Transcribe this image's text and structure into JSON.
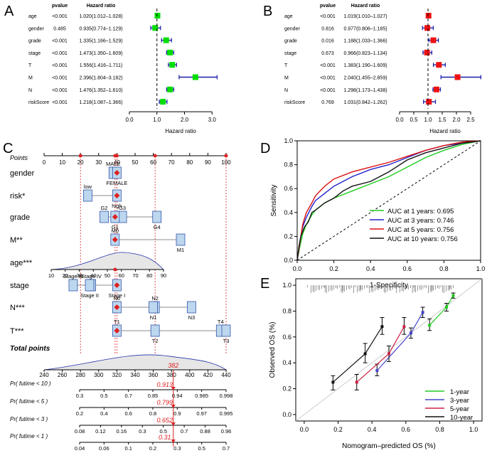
{
  "chart_data": [
    {
      "type": "forest",
      "panel_label": "A",
      "pvalue_header": "pvalue",
      "hr_header": "Hazard ratio",
      "xlabel": "Hazard ratio",
      "xlim": [
        0,
        3.2
      ],
      "ticks": [
        "0.0",
        "1.0",
        "2.0",
        "3.0"
      ],
      "tick_values": [
        0,
        1,
        2,
        3
      ],
      "ref_line": 1,
      "point_color": "#00dd00",
      "rows": [
        {
          "name": "age",
          "pvalue": "<0.001",
          "hr_text": "1.020(1.012–1.028)",
          "hr": 1.02,
          "lo": 1.012,
          "hi": 1.028
        },
        {
          "name": "gender",
          "pvalue": "0.485",
          "hr_text": "0.935(0.774–1.129)",
          "hr": 0.935,
          "lo": 0.774,
          "hi": 1.129
        },
        {
          "name": "grade",
          "pvalue": "<0.001",
          "hr_text": "1.335(1.166–1.529)",
          "hr": 1.335,
          "lo": 1.166,
          "hi": 1.529
        },
        {
          "name": "stage",
          "pvalue": "<0.001",
          "hr_text": "1.473(1.350–1.609)",
          "hr": 1.473,
          "lo": 1.35,
          "hi": 1.609
        },
        {
          "name": "T",
          "pvalue": "<0.001",
          "hr_text": "1.556(1.416–1.711)",
          "hr": 1.556,
          "lo": 1.416,
          "hi": 1.711
        },
        {
          "name": "M",
          "pvalue": "<0.001",
          "hr_text": "2.396(1.804–3.182)",
          "hr": 2.396,
          "lo": 1.804,
          "hi": 3.182
        },
        {
          "name": "N",
          "pvalue": "<0.001",
          "hr_text": "1.476(1.352–1.610)",
          "hr": 1.476,
          "lo": 1.352,
          "hi": 1.61
        },
        {
          "name": "riskScore",
          "pvalue": "<0.001",
          "hr_text": "1.218(1.087–1.366)",
          "hr": 1.218,
          "lo": 1.087,
          "hi": 1.366
        }
      ]
    },
    {
      "type": "forest",
      "panel_label": "B",
      "pvalue_header": "pvalue",
      "hr_header": "Hazard ratio",
      "xlabel": "Hazard ratio",
      "xlim": [
        0,
        2.7
      ],
      "ticks": [
        "0.0",
        "0.5",
        "1.0",
        "1.5",
        "2.0",
        "2.5"
      ],
      "tick_values": [
        0,
        0.5,
        1,
        1.5,
        2,
        2.5
      ],
      "ref_line": 1,
      "point_color": "#ee1111",
      "rows": [
        {
          "name": "age",
          "pvalue": "<0.001",
          "hr_text": "1.019(1.010–1.027)",
          "hr": 1.019,
          "lo": 1.01,
          "hi": 1.027
        },
        {
          "name": "gender",
          "pvalue": "0.816",
          "hr_text": "0.977(0.806–1.185)",
          "hr": 0.977,
          "lo": 0.806,
          "hi": 1.185
        },
        {
          "name": "grade",
          "pvalue": "0.016",
          "hr_text": "1.188(1.033–1.366)",
          "hr": 1.188,
          "lo": 1.033,
          "hi": 1.366
        },
        {
          "name": "stage",
          "pvalue": "0.673",
          "hr_text": "0.966(0.823–1.134)",
          "hr": 0.966,
          "lo": 0.823,
          "hi": 1.134
        },
        {
          "name": "T",
          "pvalue": "<0.001",
          "hr_text": "1.383(1.190–1.609)",
          "hr": 1.383,
          "lo": 1.19,
          "hi": 1.609
        },
        {
          "name": "M",
          "pvalue": "<0.001",
          "hr_text": "2.040(1.455–2.859)",
          "hr": 2.04,
          "lo": 1.455,
          "hi": 2.859
        },
        {
          "name": "N",
          "pvalue": "<0.001",
          "hr_text": "1.298(1.173–1.438)",
          "hr": 1.298,
          "lo": 1.173,
          "hi": 1.438
        },
        {
          "name": "riskScore",
          "pvalue": "0.769",
          "hr_text": "1.031(0.842–1.262)",
          "hr": 1.031,
          "lo": 0.842,
          "hi": 1.262
        }
      ]
    },
    {
      "type": "nomogram",
      "panel_label": "C",
      "points_label": "Points",
      "points_ticks": [
        "0",
        "10",
        "20",
        "30",
        "40",
        "50",
        "60",
        "70",
        "80",
        "90",
        "100"
      ],
      "points_ref_lines": [
        20,
        39,
        40,
        61,
        100
      ],
      "rows": [
        {
          "name": "gender",
          "labels": [
            {
              "text": "MALE",
              "pos": 38,
              "where": "above"
            },
            {
              "text": "FEMALE",
              "pos": 40,
              "where": "below"
            }
          ]
        },
        {
          "name": "risk*",
          "labels": [
            {
              "text": "low",
              "pos": 24,
              "where": "above"
            },
            {
              "text": "high",
              "pos": 40,
              "where": "below"
            }
          ]
        },
        {
          "name": "grade",
          "labels": [
            {
              "text": "G2",
              "pos": 33,
              "where": "above"
            },
            {
              "text": "G3",
              "pos": 43,
              "where": "above"
            },
            {
              "text": "G1",
              "pos": 39,
              "where": "below"
            },
            {
              "text": "G4",
              "pos": 62,
              "where": "below"
            }
          ]
        },
        {
          "name": "M**",
          "labels": [
            {
              "text": "M0",
              "pos": 39,
              "where": "above"
            },
            {
              "text": "M1",
              "pos": 75,
              "where": "below"
            }
          ]
        },
        {
          "name": "age***",
          "axis_ticks": [
            "10",
            "20",
            "30",
            "40",
            "50",
            "60",
            "70",
            "80",
            "90"
          ]
        },
        {
          "name": "stage",
          "labels": [
            {
              "text": "Stage III",
              "pos": 16,
              "where": "above"
            },
            {
              "text": "Stage IV",
              "pos": 26,
              "where": "above"
            },
            {
              "text": "Stage II",
              "pos": 25,
              "where": "below"
            },
            {
              "text": "Stage I",
              "pos": 40,
              "where": "below"
            }
          ]
        },
        {
          "name": "N***",
          "labels": [
            {
              "text": "N0",
              "pos": 40,
              "where": "above"
            },
            {
              "text": "N2",
              "pos": 61,
              "where": "above"
            },
            {
              "text": "N1",
              "pos": 60,
              "where": "below"
            },
            {
              "text": "N3",
              "pos": 81,
              "where": "below"
            }
          ]
        },
        {
          "name": "T***",
          "labels": [
            {
              "text": "T1",
              "pos": 40,
              "where": "above"
            },
            {
              "text": "T4",
              "pos": 97,
              "where": "above"
            },
            {
              "text": "T2",
              "pos": 61,
              "where": "below"
            },
            {
              "text": "T3",
              "pos": 100,
              "where": "below"
            }
          ]
        }
      ],
      "total_points_label": "Total points",
      "total_points_ticks": [
        "240",
        "260",
        "280",
        "300",
        "320",
        "340",
        "360",
        "380",
        "400",
        "420",
        "440"
      ],
      "total_points_value": "382",
      "prob_rows": [
        {
          "name": "Pr( futime < 10 )",
          "value": "0.913",
          "ticks": [
            "0.3",
            "0.5",
            "0.7",
            "0.85",
            "0.94",
            "0.985",
            "0.998"
          ]
        },
        {
          "name": "Pr( futime < 5 )",
          "value": "0.799",
          "ticks": [
            "0.2",
            "0.4",
            "0.6",
            "0.8",
            "0.9",
            "0.97",
            "0.995"
          ]
        },
        {
          "name": "Pr( futime < 3 )",
          "value": "0.652",
          "ticks": [
            "0.08",
            "0.12",
            "0.16",
            "0.3",
            "0.5",
            "0.7",
            "0.88",
            "0.96"
          ]
        },
        {
          "name": "Pr( futime < 1 )",
          "value": "0.31",
          "ticks": [
            "0.04",
            "0.06",
            "0.1",
            "0.2",
            "0.3",
            "0.5",
            "0.7"
          ]
        }
      ]
    },
    {
      "type": "line",
      "panel_label": "D",
      "xlabel": "1-Specificity",
      "ylabel": "Sensitivity",
      "xlim": [
        0,
        1
      ],
      "ylim": [
        0,
        1
      ],
      "ticks": [
        "0.0",
        "0.2",
        "0.4",
        "0.6",
        "0.8",
        "1.0"
      ],
      "tick_values": [
        0,
        0.2,
        0.4,
        0.6,
        0.8,
        1.0
      ],
      "series": [
        {
          "name": "AUC at 1 years: 0.695",
          "color": "#22cc22",
          "x": [
            0,
            0.01,
            0.02,
            0.03,
            0.05,
            0.08,
            0.1,
            0.15,
            0.2,
            0.3,
            0.4,
            0.5,
            0.6,
            0.7,
            0.8,
            0.9,
            1.0
          ],
          "y": [
            0,
            0.08,
            0.15,
            0.22,
            0.3,
            0.38,
            0.42,
            0.48,
            0.52,
            0.58,
            0.64,
            0.7,
            0.78,
            0.86,
            0.92,
            0.97,
            1.0
          ]
        },
        {
          "name": "AUC at 3 years: 0.746",
          "color": "#2222cc",
          "x": [
            0,
            0.01,
            0.02,
            0.03,
            0.05,
            0.08,
            0.1,
            0.15,
            0.2,
            0.3,
            0.4,
            0.5,
            0.6,
            0.7,
            0.8,
            0.9,
            1.0
          ],
          "y": [
            0,
            0.1,
            0.2,
            0.28,
            0.36,
            0.45,
            0.5,
            0.56,
            0.62,
            0.7,
            0.76,
            0.8,
            0.86,
            0.92,
            0.96,
            0.98,
            1.0
          ]
        },
        {
          "name": "AUC at 5 years: 0.756",
          "color": "#dd1111",
          "x": [
            0,
            0.01,
            0.02,
            0.03,
            0.05,
            0.08,
            0.1,
            0.15,
            0.2,
            0.3,
            0.4,
            0.5,
            0.6,
            0.7,
            0.8,
            0.9,
            1.0
          ],
          "y": [
            0,
            0.1,
            0.2,
            0.3,
            0.4,
            0.48,
            0.54,
            0.62,
            0.68,
            0.74,
            0.78,
            0.82,
            0.87,
            0.92,
            0.96,
            0.99,
            1.0
          ]
        },
        {
          "name": "AUC at 10 years: 0.756",
          "color": "#111111",
          "x": [
            0,
            0.01,
            0.02,
            0.04,
            0.06,
            0.08,
            0.1,
            0.15,
            0.2,
            0.25,
            0.3,
            0.4,
            0.5,
            0.6,
            0.7,
            0.8,
            0.9,
            1.0
          ],
          "y": [
            0,
            0.12,
            0.2,
            0.28,
            0.32,
            0.4,
            0.42,
            0.48,
            0.52,
            0.58,
            0.62,
            0.66,
            0.74,
            0.84,
            0.9,
            0.94,
            0.98,
            1.0
          ]
        }
      ],
      "diagonal": true,
      "legend_position": "bottom-right"
    },
    {
      "type": "line",
      "panel_label": "E",
      "xlabel": "Nomogram–predicted OS (%)",
      "ylabel": "Observed OS (%)",
      "xlim": [
        -0.05,
        1.05
      ],
      "ylim": [
        -0.05,
        1.05
      ],
      "ticks": [
        "0.0",
        "0.2",
        "0.4",
        "0.6",
        "0.8",
        "1.0"
      ],
      "tick_values": [
        0,
        0.2,
        0.4,
        0.6,
        0.8,
        1.0
      ],
      "series": [
        {
          "name": "1-year",
          "color": "#22cc22",
          "x": [
            0.74,
            0.84,
            0.88
          ],
          "y": [
            0.69,
            0.83,
            0.92
          ],
          "lo": [
            0.65,
            0.8,
            0.9
          ],
          "hi": [
            0.74,
            0.86,
            0.94
          ]
        },
        {
          "name": "3-year",
          "color": "#4444cc",
          "x": [
            0.43,
            0.63,
            0.7
          ],
          "y": [
            0.34,
            0.63,
            0.79
          ],
          "lo": [
            0.3,
            0.59,
            0.75
          ],
          "hi": [
            0.39,
            0.67,
            0.83
          ]
        },
        {
          "name": "5-year",
          "color": "#cc2244",
          "x": [
            0.31,
            0.5,
            0.59
          ],
          "y": [
            0.25,
            0.47,
            0.68
          ],
          "lo": [
            0.19,
            0.41,
            0.62
          ],
          "hi": [
            0.31,
            0.53,
            0.75
          ]
        },
        {
          "name": "10-year",
          "color": "#111111",
          "x": [
            0.17,
            0.36,
            0.46
          ],
          "y": [
            0.25,
            0.47,
            0.68
          ],
          "lo": [
            0.19,
            0.4,
            0.62
          ],
          "hi": [
            0.3,
            0.55,
            0.75
          ]
        }
      ],
      "legend_position": "bottom-right"
    }
  ]
}
